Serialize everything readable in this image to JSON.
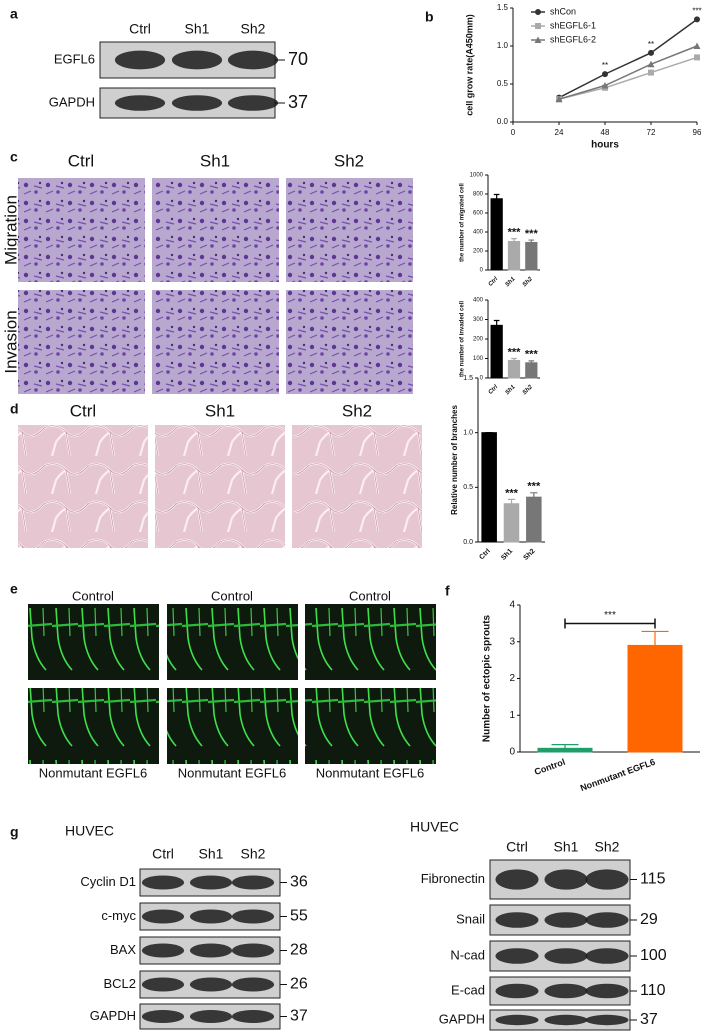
{
  "panel_labels": [
    "a",
    "b",
    "c",
    "d",
    "e",
    "f",
    "g"
  ],
  "blot_a": {
    "lanes": [
      "Ctrl",
      "Sh1",
      "Sh2"
    ],
    "rows": [
      {
        "name": "EGFL6",
        "kda": 70
      },
      {
        "name": "GAPDH",
        "kda": 37
      }
    ]
  },
  "migration_invasion": {
    "columns": [
      "Ctrl",
      "Sh1",
      "Sh2"
    ],
    "rows": [
      "Migration",
      "Invasion"
    ]
  },
  "tube_formation": {
    "columns": [
      "Ctrl",
      "Sh1",
      "Sh2"
    ]
  },
  "zebrafish": {
    "top_labels": [
      "Control",
      "Control",
      "Control"
    ],
    "bottom_labels": [
      "Nonmutant EGFL6",
      "Nonmutant EGFL6",
      "Nonmutant EGFL6"
    ]
  },
  "blot_g_left": {
    "cell_line": "HUVEC",
    "lanes": [
      "Ctrl",
      "Sh1",
      "Sh2"
    ],
    "rows": [
      {
        "name": "Cyclin D1",
        "kda": 36
      },
      {
        "name": "c-myc",
        "kda": 55
      },
      {
        "name": "BAX",
        "kda": 28
      },
      {
        "name": "BCL2",
        "kda": 26
      },
      {
        "name": "GAPDH",
        "kda": 37
      }
    ]
  },
  "blot_g_right": {
    "cell_line": "HUVEC",
    "lanes": [
      "Ctrl",
      "Sh1",
      "Sh2"
    ],
    "rows": [
      {
        "name": "Fibronectin",
        "kda": 115
      },
      {
        "name": "Snail",
        "kda": 29
      },
      {
        "name": "N-cad",
        "kda": 100
      },
      {
        "name": "E-cad",
        "kda": 110
      },
      {
        "name": "GAPDH",
        "kda": 37
      }
    ]
  },
  "chart_data": [
    {
      "type": "line",
      "y_label": "cell grow rate(A450mm)",
      "x_label": "hours",
      "x": [
        24,
        48,
        72,
        96
      ],
      "xlim": [
        0,
        96
      ],
      "xticks": [
        0,
        24,
        48,
        72,
        96
      ],
      "ylim": [
        0,
        1.5
      ],
      "yticks": [
        {
          "value": 0,
          "label": "0.0"
        },
        0.5,
        {
          "value": 1,
          "label": "1.0"
        },
        1.5
      ],
      "legend": "upper left",
      "series": [
        {
          "name": "shCon",
          "color": "#333333",
          "marker": "circle",
          "values": [
            0.32,
            0.63,
            0.91,
            1.35
          ]
        },
        {
          "name": "shEGFL6-1",
          "color": "#aaaaaa",
          "marker": "square",
          "values": [
            0.3,
            0.45,
            0.65,
            0.85
          ]
        },
        {
          "name": "shEGFL6-2",
          "color": "#777777",
          "marker": "triangle",
          "values": [
            0.3,
            0.48,
            0.76,
            1.0
          ]
        }
      ],
      "annotations": [
        null,
        "**",
        "**",
        "***"
      ]
    },
    {
      "type": "bar",
      "y_label": "the number of migrated cell",
      "categories": [
        "Ctrl",
        "Sh1",
        "Sh2"
      ],
      "values": [
        750,
        300,
        290
      ],
      "errors": [
        45,
        30,
        25
      ],
      "colors": [
        "#000000",
        "#aaaaaa",
        "#777777"
      ],
      "ylim": [
        0,
        1000
      ],
      "yticks": [
        0,
        200,
        400,
        600,
        800,
        1000
      ],
      "annotations": [
        null,
        "***",
        "***"
      ]
    },
    {
      "type": "bar",
      "y_label": "the number of invaded cell",
      "categories": [
        "Ctrl",
        "Sh1",
        "Sh2"
      ],
      "values": [
        270,
        90,
        78
      ],
      "errors": [
        25,
        10,
        10
      ],
      "colors": [
        "#000000",
        "#aaaaaa",
        "#777777"
      ],
      "ylim": [
        0,
        400
      ],
      "yticks": [
        0,
        100,
        200,
        300,
        400
      ],
      "annotations": [
        null,
        "***",
        "***"
      ]
    },
    {
      "type": "bar",
      "y_label": "Relative number of branches",
      "categories": [
        "Ctrl",
        "Sh1",
        "Sh2"
      ],
      "values": [
        1.0,
        0.35,
        0.41
      ],
      "errors": [
        0,
        0.04,
        0.04
      ],
      "colors": [
        "#000000",
        "#aaaaaa",
        "#777777"
      ],
      "ylim": [
        0,
        1.5
      ],
      "yticks": [
        {
          "value": 0,
          "label": "0.0"
        },
        0.5,
        {
          "value": 1,
          "label": "1.0"
        },
        1.5
      ],
      "annotations": [
        null,
        "***",
        "***"
      ]
    },
    {
      "type": "bar",
      "y_label": "Number of ectopic sprouts",
      "categories": [
        "Control",
        "Nonmutant EGFL6"
      ],
      "values": [
        0.1,
        2.9
      ],
      "errors": [
        0.1,
        0.38
      ],
      "colors": [
        "#1f9e6a",
        "#ff6600"
      ],
      "ylim": [
        0,
        4
      ],
      "yticks": [
        0,
        1,
        2,
        3,
        4
      ],
      "comparison": "***"
    }
  ]
}
